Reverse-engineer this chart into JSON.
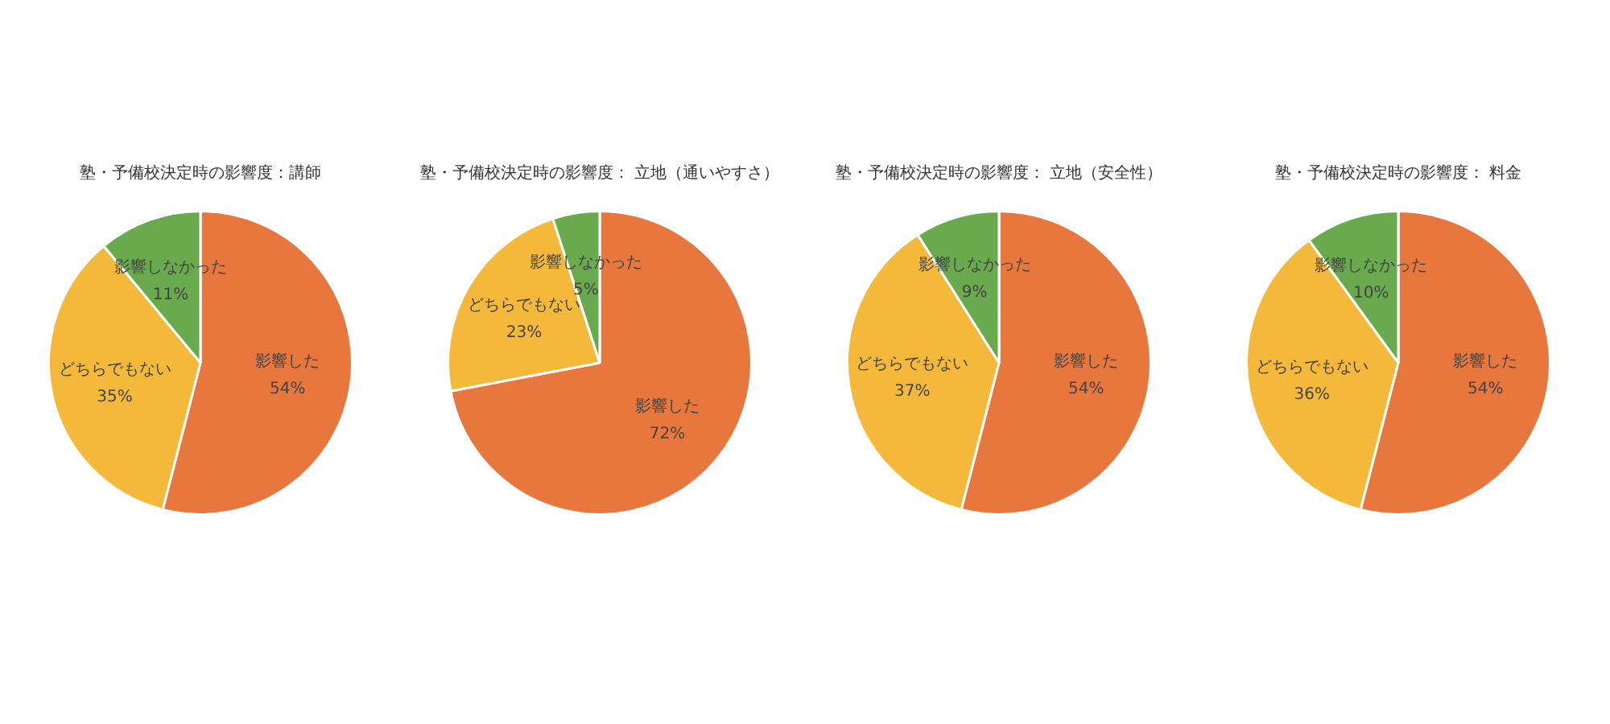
{
  "chart_data": [
    {
      "type": "pie",
      "title": "塾・予備校決定時の影響度：講師",
      "categories": [
        "影響した",
        "どちらでもない",
        "影響しなかった"
      ],
      "values": [
        54,
        35,
        11
      ],
      "value_labels": [
        "54%",
        "35%",
        "11%"
      ],
      "colors": [
        "#e8773d",
        "#f4b93b",
        "#6aaa4f"
      ],
      "legend": false
    },
    {
      "type": "pie",
      "title": "塾・予備校決定時の影響度： 立地（通いやすさ）",
      "categories": [
        "影響した",
        "どちらでもない",
        "影響しなかった"
      ],
      "values": [
        72,
        23,
        5
      ],
      "value_labels": [
        "72%",
        "23%",
        "5%"
      ],
      "colors": [
        "#e8773d",
        "#f4b93b",
        "#6aaa4f"
      ],
      "legend": false
    },
    {
      "type": "pie",
      "title": "塾・予備校決定時の影響度： 立地（安全性）",
      "categories": [
        "影響した",
        "どちらでもない",
        "影響しなかった"
      ],
      "values": [
        54,
        37,
        9
      ],
      "value_labels": [
        "54%",
        "37%",
        "9%"
      ],
      "colors": [
        "#e8773d",
        "#f4b93b",
        "#6aaa4f"
      ],
      "legend": false
    },
    {
      "type": "pie",
      "title": "塾・予備校決定時の影響度： 料金",
      "categories": [
        "影響した",
        "どちらでもない",
        "影響しなかった"
      ],
      "values": [
        54,
        36,
        10
      ],
      "value_labels": [
        "54%",
        "36%",
        "10%"
      ],
      "colors": [
        "#e8773d",
        "#f4b93b",
        "#6aaa4f"
      ],
      "legend": false
    }
  ]
}
